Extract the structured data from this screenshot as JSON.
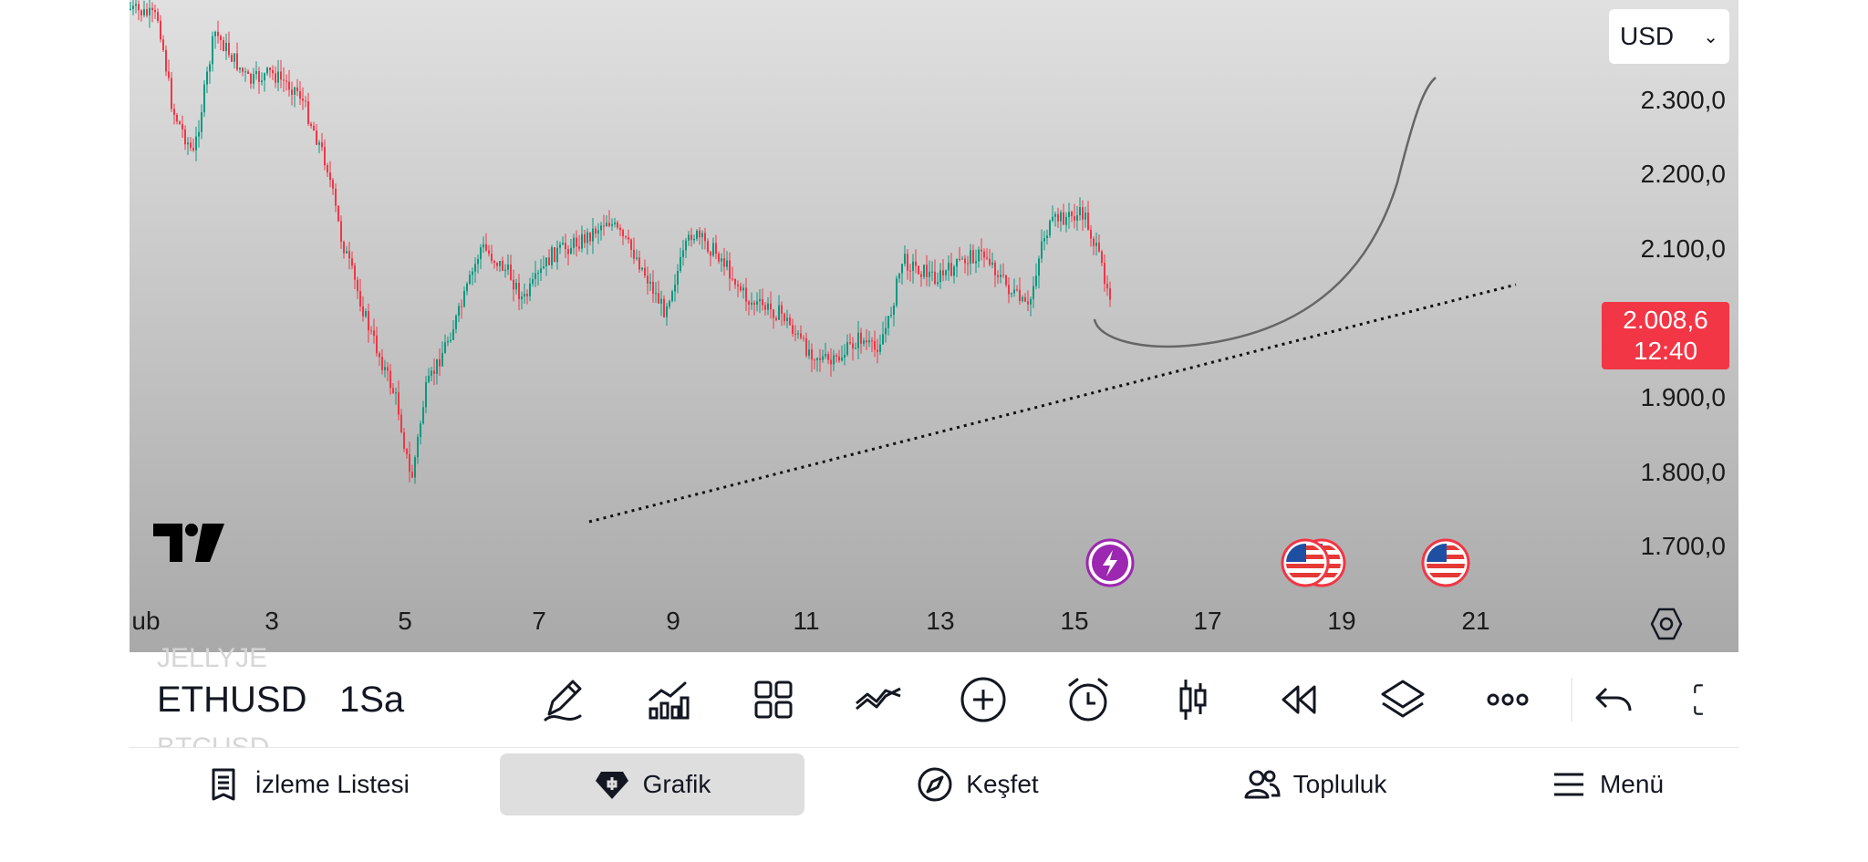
{
  "chart": {
    "currency": "USD",
    "price_axis": [
      "2.300,0",
      "2.200,0",
      "2.100,0",
      "1.900,0",
      "1.800,0",
      "1.700,0"
    ],
    "last_price": "2.008,6",
    "countdown": "12:40",
    "date_axis": [
      "ub",
      "3",
      "5",
      "7",
      "9",
      "11",
      "13",
      "15",
      "17",
      "19",
      "21"
    ],
    "up_color": "#089981",
    "down_color": "#f23645"
  },
  "toolbar": {
    "symbol": "ETHUSD",
    "interval": "1Sa",
    "ghost_above": "JELLYJE",
    "ghost_below": "BTCUSD",
    "tools": [
      "pencil-icon",
      "indicators-icon",
      "layouts-icon",
      "compare-icon",
      "plus-circle-icon",
      "alarm-icon",
      "candles-icon",
      "replay-icon",
      "layers-icon",
      "more-icon",
      "undo-icon",
      "fullscreen-icon"
    ]
  },
  "nav": {
    "watchlist": "İzleme Listesi",
    "chart": "Grafik",
    "explore": "Keşfet",
    "community": "Topluluk",
    "menu": "Menü"
  }
}
